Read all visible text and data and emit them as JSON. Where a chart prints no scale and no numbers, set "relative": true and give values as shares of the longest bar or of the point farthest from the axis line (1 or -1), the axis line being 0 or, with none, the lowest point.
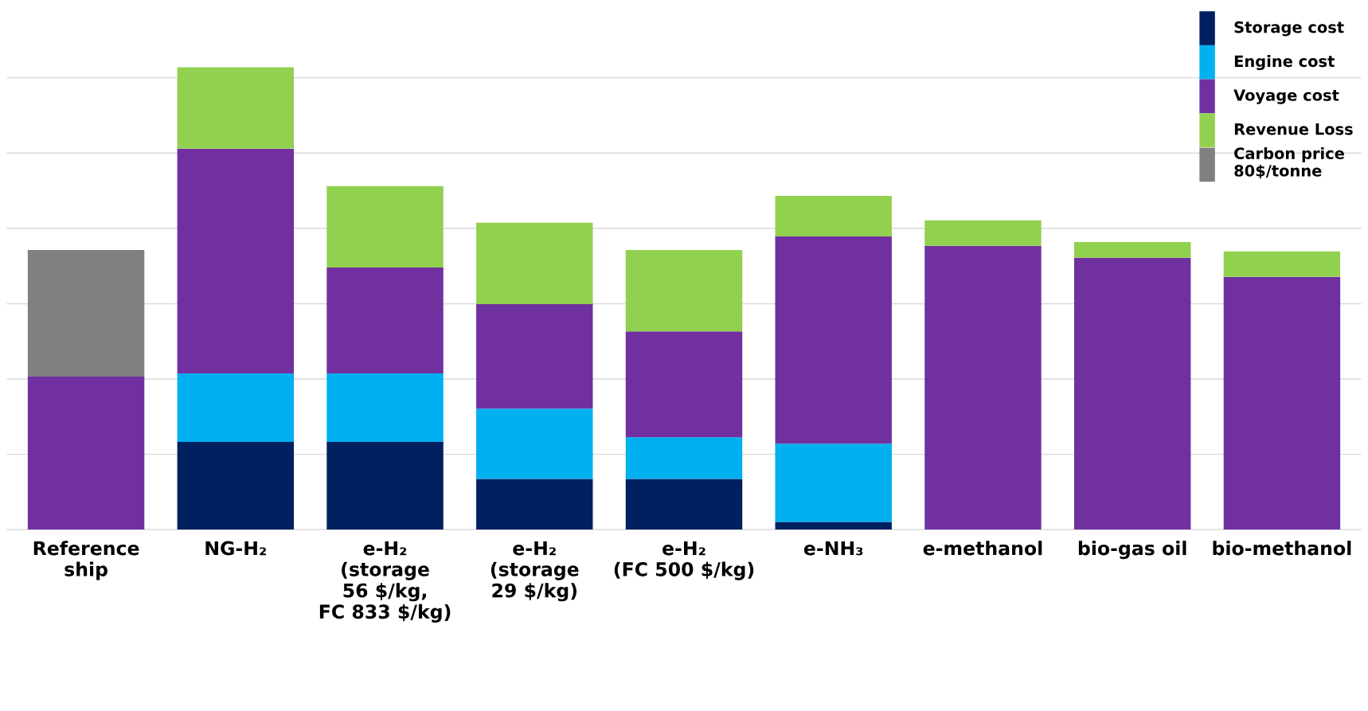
{
  "chart_data": {
    "type": "bar",
    "stacked": true,
    "relative": true,
    "grid": "y",
    "legend": "top right",
    "categories": [
      "Reference\nship",
      "NG-H₂",
      "e-H₂\n(storage\n56 $/kg,\nFC 833 $/kg)",
      "e-H₂\n(storage\n29 $/kg)",
      "e-H₂\n(FC 500 $/kg)",
      "e-NH₃",
      "e-methanol",
      "bio-gas oil",
      "bio-methanol"
    ],
    "series": [
      {
        "name": "Storage cost",
        "color": "#002060",
        "values": [
          null,
          0.19,
          0.19,
          0.11,
          0.11,
          0.017,
          null,
          null,
          null
        ]
      },
      {
        "name": "Engine cost",
        "color": "#00b0f0",
        "values": [
          null,
          0.148,
          0.148,
          0.152,
          0.09,
          0.169,
          null,
          null,
          null
        ]
      },
      {
        "name": "Voyage cost",
        "color": "#7030a0",
        "values": [
          0.331,
          0.486,
          0.229,
          0.226,
          0.229,
          0.448,
          0.614,
          0.588,
          0.547
        ]
      },
      {
        "name": "Revenue Loss",
        "color": "#92d050",
        "values": [
          null,
          0.176,
          0.176,
          0.176,
          0.176,
          0.088,
          0.055,
          0.034,
          0.055
        ]
      },
      {
        "name": "Carbon price\n80$/tonne",
        "color": "#808080",
        "values": [
          0.274,
          null,
          null,
          null,
          null,
          null,
          null,
          null,
          null
        ]
      }
    ]
  }
}
